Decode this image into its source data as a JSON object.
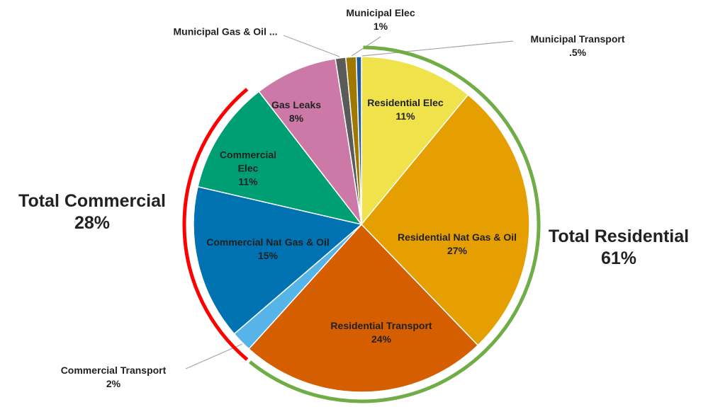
{
  "chart_data": {
    "type": "pie",
    "categories": [
      "Residential Elec",
      "Residential Nat Gas & Oil",
      "Residential Transport",
      "Commercial Transport",
      "Commercial Nat Gas & Oil",
      "Commercial Elec",
      "Gas Leaks",
      "Municipal Gas & Oil  ...",
      "Municipal Elec",
      "Municipal Transport"
    ],
    "values": [
      11,
      27,
      24,
      2,
      15,
      11,
      8,
      1,
      1,
      0.5
    ],
    "value_labels": [
      "11%",
      "27%",
      "24%",
      "2%",
      "15%",
      "11%",
      "8%",
      null,
      "1%",
      ".5%"
    ],
    "colors": [
      "#efe24a",
      "#e69f00",
      "#d55e00",
      "#56b4e9",
      "#0072b2",
      "#009e73",
      "#cc79a7",
      "#5a5a5a",
      "#a07800",
      "#1f5a96"
    ],
    "groups": [
      {
        "name": "Total Residential",
        "value": 61,
        "value_label": "61%",
        "color": "#70ad47"
      },
      {
        "name": "Total Commercial",
        "value": 28,
        "value_label": "28%",
        "color": "#ff0000"
      }
    ]
  }
}
